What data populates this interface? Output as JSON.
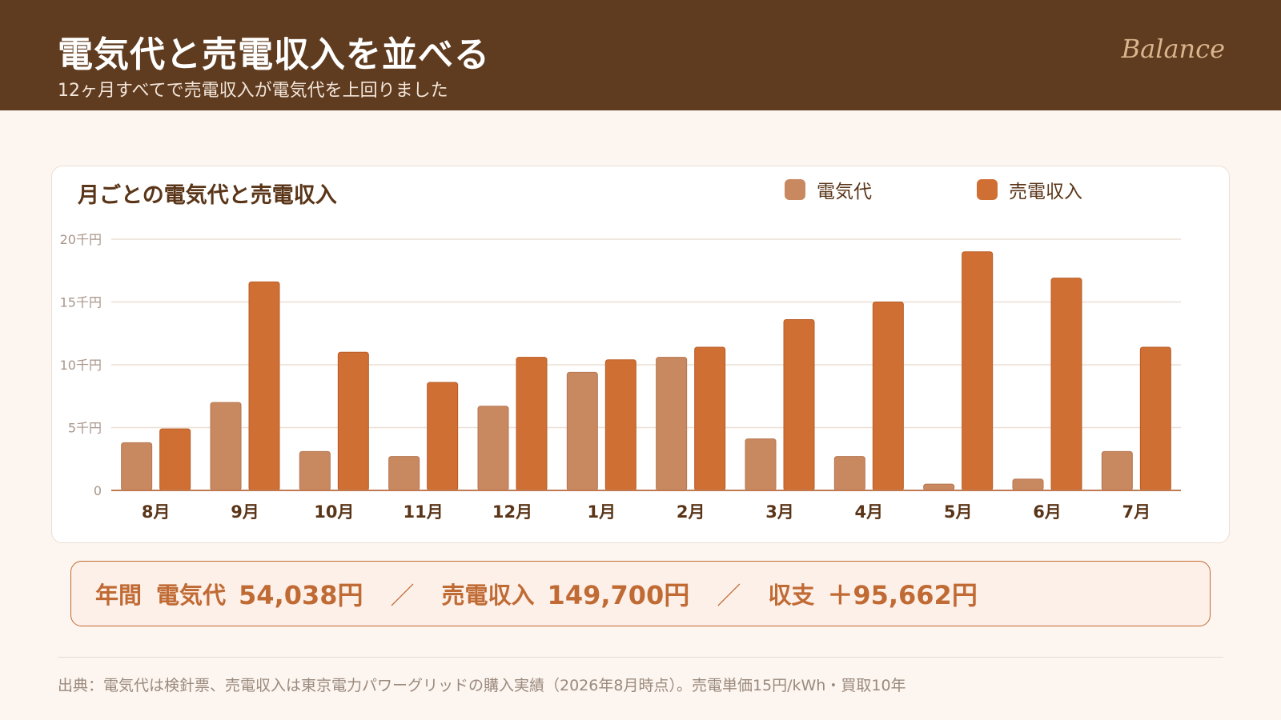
{
  "header": {
    "title": "電気代と売電収入を並べる",
    "subtitle": "12ヶ月すべてで売電収入が電気代を上回りました",
    "brand": "Balance"
  },
  "card": {
    "title": "月ごとの電気代と売電収入"
  },
  "colors": {
    "header_bg": "#5f3b1f",
    "page_bg": "#fdf5ef",
    "electricity": "#c98960",
    "sales": "#d06f34",
    "accent": "#c06a34"
  },
  "chart_data": {
    "type": "bar",
    "title": "月ごとの電気代と売電収入",
    "xlabel": "",
    "ylabel": "",
    "categories": [
      "8月",
      "9月",
      "10月",
      "11月",
      "12月",
      "1月",
      "2月",
      "3月",
      "4月",
      "5月",
      "6月",
      "7月"
    ],
    "ylim": [
      0,
      20
    ],
    "y_ticks": [
      "0",
      "5千円",
      "10千円",
      "15千円",
      "20千円"
    ],
    "grid": true,
    "legend_position": "top-right",
    "series": [
      {
        "name": "電気代",
        "color": "#c98960",
        "values": [
          3.8,
          7.0,
          3.1,
          2.7,
          6.7,
          9.4,
          10.6,
          4.1,
          2.7,
          0.5,
          0.9,
          3.1
        ]
      },
      {
        "name": "売電収入",
        "color": "#d06f34",
        "values": [
          4.9,
          16.6,
          11.0,
          8.6,
          10.6,
          10.4,
          11.4,
          13.6,
          15.0,
          19.0,
          16.9,
          11.4
        ]
      }
    ]
  },
  "summary": {
    "year_label": "年間",
    "elec_label": "電気代",
    "elec_value": "54,038円",
    "sep1": "／",
    "sales_label": "売電収入",
    "sales_value": "149,700円",
    "sep2": "／",
    "balance_label": "収支",
    "balance_value": "＋95,662円"
  },
  "source": "出典：電気代は検針票、売電収入は東京電力パワーグリッドの購入実績（2026年8月時点）。売電単価15円/kWh・買取10年"
}
